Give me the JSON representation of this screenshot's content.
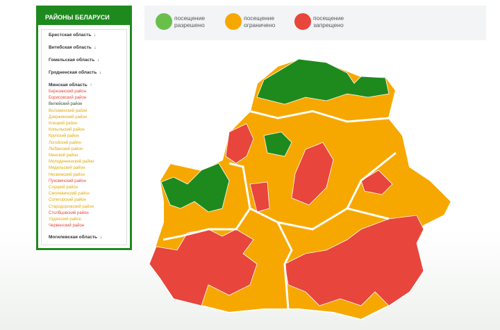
{
  "sidebar": {
    "title": "РАЙОНЫ БЕЛАРУСИ",
    "regions": [
      {
        "name": "Брестская область",
        "arrow": "↓"
      },
      {
        "name": "Витебская область",
        "arrow": "↓"
      },
      {
        "name": "Гомельская область",
        "arrow": "↓"
      },
      {
        "name": "Гродненская область",
        "arrow": "↓"
      },
      {
        "name": "Минская область",
        "arrow": "↑",
        "districts": [
          {
            "name": "Березинский район",
            "color": "#e8453c"
          },
          {
            "name": "Борисовский район",
            "color": "#e8453c"
          },
          {
            "name": "Вилейский район",
            "color": "#2f4f2f"
          },
          {
            "name": "Воложинский район",
            "color": "#e0a800"
          },
          {
            "name": "Дзержинский район",
            "color": "#e0a800"
          },
          {
            "name": "Клецкий район",
            "color": "#e0a800"
          },
          {
            "name": "Копыльский район",
            "color": "#e0a800"
          },
          {
            "name": "Крупский район",
            "color": "#e0a800"
          },
          {
            "name": "Логойский район",
            "color": "#e0a800"
          },
          {
            "name": "Любанский район",
            "color": "#e0a800"
          },
          {
            "name": "Минский район",
            "color": "#e0a800"
          },
          {
            "name": "Молодечненский район",
            "color": "#e0a800"
          },
          {
            "name": "Мядельский район",
            "color": "#e0a800"
          },
          {
            "name": "Несвижский район",
            "color": "#e0a800"
          },
          {
            "name": "Пуховичский район",
            "color": "#e8453c"
          },
          {
            "name": "Слуцкий район",
            "color": "#e0a800"
          },
          {
            "name": "Смолевичский район",
            "color": "#e0a800"
          },
          {
            "name": "Солигорский район",
            "color": "#e0a800"
          },
          {
            "name": "Стародорожский район",
            "color": "#e0a800"
          },
          {
            "name": "Столбцовский район",
            "color": "#e8453c"
          },
          {
            "name": "Узденский район",
            "color": "#e0a800"
          },
          {
            "name": "Червенский район",
            "color": "#e8453c"
          }
        ]
      },
      {
        "name": "Могилевская область",
        "arrow": "↓"
      }
    ]
  },
  "legend": [
    {
      "label": "посещение\nразрешено",
      "color": "#6abf4b"
    },
    {
      "label": "посещение\nограничено",
      "color": "#f7a800"
    },
    {
      "label": "посещение\nзапрещено",
      "color": "#e8453c"
    }
  ]
}
